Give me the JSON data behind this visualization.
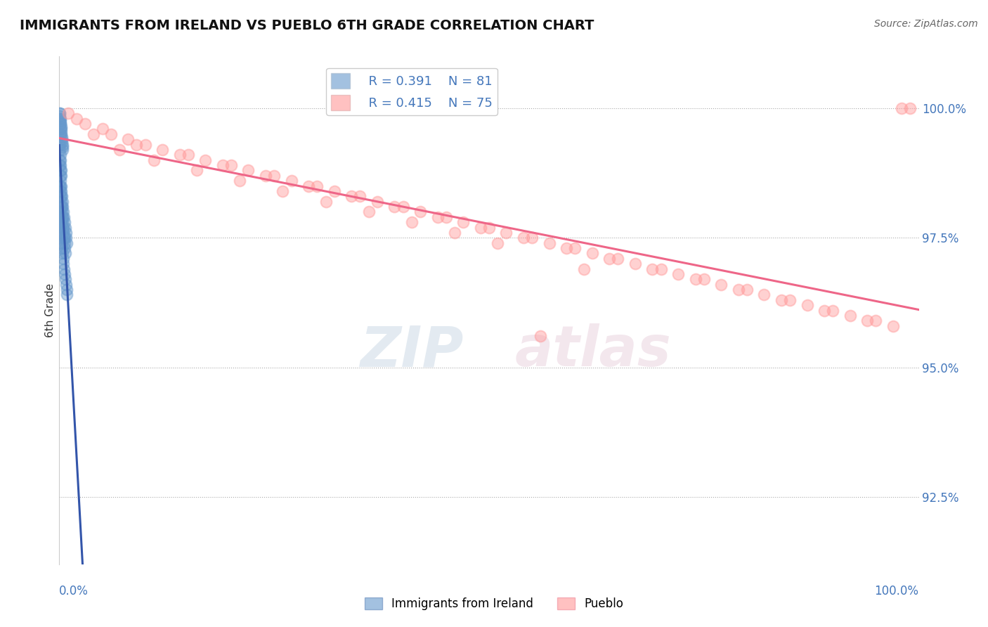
{
  "title": "IMMIGRANTS FROM IRELAND VS PUEBLO 6TH GRADE CORRELATION CHART",
  "source": "Source: ZipAtlas.com",
  "ylabel": "6th Grade",
  "y_tick_labels": [
    "92.5%",
    "95.0%",
    "97.5%",
    "100.0%"
  ],
  "y_tick_values": [
    92.5,
    95.0,
    97.5,
    100.0
  ],
  "xlim": [
    0.0,
    100.0
  ],
  "ylim": [
    91.2,
    101.0
  ],
  "legend_r1": "R = 0.391",
  "legend_n1": "N = 81",
  "legend_r2": "R = 0.415",
  "legend_n2": "N = 75",
  "blue_color": "#6699CC",
  "pink_color": "#FF9999",
  "trend_blue": "#3355AA",
  "trend_pink": "#EE6688",
  "watermark_zip": "ZIP",
  "watermark_atlas": "atlas",
  "legend_label1": "Immigrants from Ireland",
  "legend_label2": "Pueblo",
  "blue_scatter_x": [
    0.05,
    0.08,
    0.1,
    0.12,
    0.15,
    0.18,
    0.2,
    0.22,
    0.25,
    0.28,
    0.3,
    0.32,
    0.35,
    0.38,
    0.4,
    0.05,
    0.08,
    0.1,
    0.12,
    0.15,
    0.05,
    0.07,
    0.1,
    0.13,
    0.15,
    0.18,
    0.2,
    0.08,
    0.12,
    0.15,
    0.2,
    0.25,
    0.3,
    0.35,
    0.4,
    0.45,
    0.5,
    0.55,
    0.6,
    0.65,
    0.7,
    0.05,
    0.08,
    0.1,
    0.12,
    0.15,
    0.18,
    0.22,
    0.28,
    0.35,
    0.42,
    0.48,
    0.55,
    0.62,
    0.68,
    0.75,
    0.82,
    0.9,
    0.06,
    0.09,
    0.11,
    0.14,
    0.17,
    0.21,
    0.26,
    0.31,
    0.37,
    0.43,
    0.5,
    0.57,
    0.63,
    0.7,
    0.77,
    0.84,
    0.91,
    0.15,
    0.22,
    0.3,
    0.4,
    0.5,
    0.6
  ],
  "blue_scatter_y": [
    99.9,
    99.85,
    99.8,
    99.75,
    99.7,
    99.65,
    99.6,
    99.55,
    99.5,
    99.45,
    99.4,
    99.35,
    99.3,
    99.25,
    99.2,
    99.9,
    99.8,
    99.7,
    99.6,
    99.5,
    99.3,
    99.2,
    99.1,
    99.0,
    98.9,
    98.8,
    98.7,
    98.5,
    98.4,
    98.3,
    98.2,
    98.1,
    98.0,
    97.9,
    97.8,
    97.7,
    97.6,
    97.5,
    97.4,
    97.3,
    97.2,
    99.0,
    98.9,
    98.8,
    98.7,
    98.6,
    98.5,
    98.4,
    98.3,
    98.2,
    98.1,
    98.0,
    97.9,
    97.8,
    97.7,
    97.6,
    97.5,
    97.4,
    98.0,
    97.9,
    97.8,
    97.7,
    97.6,
    97.5,
    97.4,
    97.3,
    97.2,
    97.1,
    97.0,
    96.9,
    96.8,
    96.7,
    96.6,
    96.5,
    96.4,
    98.5,
    98.3,
    98.1,
    97.9,
    97.7,
    97.5
  ],
  "pink_scatter_x": [
    1.0,
    3.0,
    6.0,
    10.0,
    15.0,
    20.0,
    25.0,
    30.0,
    35.0,
    40.0,
    45.0,
    50.0,
    55.0,
    60.0,
    65.0,
    70.0,
    75.0,
    80.0,
    85.0,
    90.0,
    95.0,
    98.0,
    2.0,
    5.0,
    8.0,
    12.0,
    17.0,
    22.0,
    27.0,
    32.0,
    37.0,
    42.0,
    47.0,
    52.0,
    57.0,
    62.0,
    67.0,
    72.0,
    77.0,
    82.0,
    87.0,
    92.0,
    97.0,
    4.0,
    9.0,
    14.0,
    19.0,
    24.0,
    29.0,
    34.0,
    39.0,
    44.0,
    49.0,
    54.0,
    59.0,
    64.0,
    69.0,
    74.0,
    79.0,
    84.0,
    89.0,
    94.0,
    99.0,
    7.0,
    11.0,
    16.0,
    21.0,
    26.0,
    31.0,
    36.0,
    41.0,
    46.0,
    51.0,
    56.0,
    61.0
  ],
  "pink_scatter_y": [
    99.9,
    99.7,
    99.5,
    99.3,
    99.1,
    98.9,
    98.7,
    98.5,
    98.3,
    98.1,
    97.9,
    97.7,
    97.5,
    97.3,
    97.1,
    96.9,
    96.7,
    96.5,
    96.3,
    96.1,
    95.9,
    100.0,
    99.8,
    99.6,
    99.4,
    99.2,
    99.0,
    98.8,
    98.6,
    98.4,
    98.2,
    98.0,
    97.8,
    97.6,
    97.4,
    97.2,
    97.0,
    96.8,
    96.6,
    96.4,
    96.2,
    96.0,
    95.8,
    99.5,
    99.3,
    99.1,
    98.9,
    98.7,
    98.5,
    98.3,
    98.1,
    97.9,
    97.7,
    97.5,
    97.3,
    97.1,
    96.9,
    96.7,
    96.5,
    96.3,
    96.1,
    95.9,
    100.0,
    99.2,
    99.0,
    98.8,
    98.6,
    98.4,
    98.2,
    98.0,
    97.8,
    97.6,
    97.4,
    95.6,
    96.9
  ]
}
